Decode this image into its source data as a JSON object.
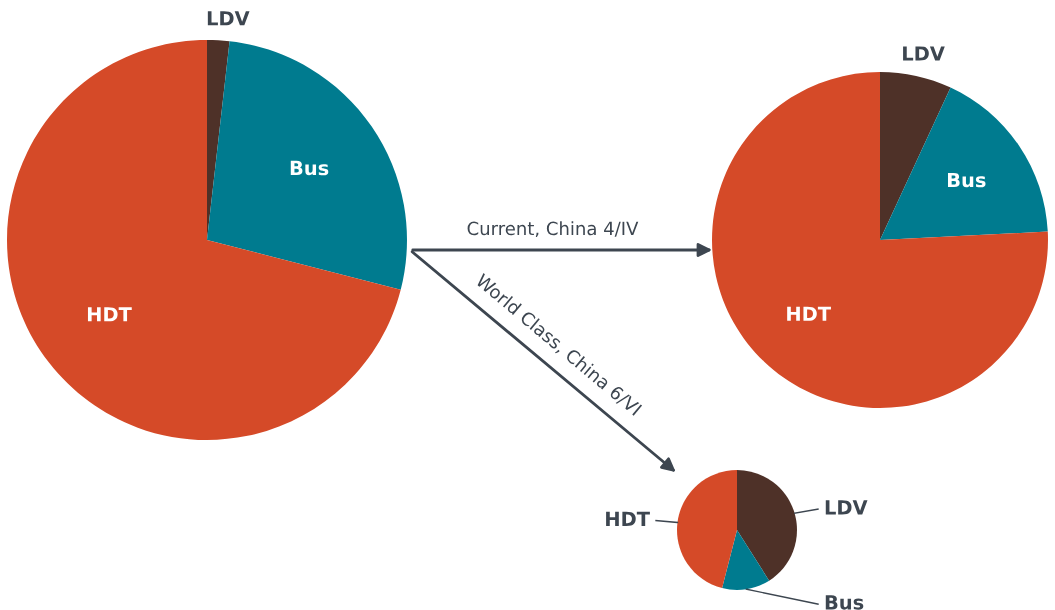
{
  "chart_data": [
    {
      "type": "pie",
      "categories": [
        "LDV",
        "Bus",
        "HDT"
      ],
      "values": [
        1.8,
        27.2,
        71
      ],
      "colors": [
        "#4e3128",
        "#007b8f",
        "#d54a28"
      ],
      "annotations": [
        "Current, China 4/IV",
        "World Class, China 6/VI"
      ]
    },
    {
      "type": "pie",
      "categories": [
        "LDV",
        "Bus",
        "HDT"
      ],
      "values": [
        6.9,
        17.3,
        75.8
      ],
      "colors": [
        "#4e3128",
        "#007b8f",
        "#d54a28"
      ]
    },
    {
      "type": "pie",
      "categories": [
        "LDV",
        "Bus",
        "HDT"
      ],
      "values": [
        41,
        13,
        46
      ],
      "colors": [
        "#4e3128",
        "#007b8f",
        "#d54a28"
      ]
    }
  ]
}
